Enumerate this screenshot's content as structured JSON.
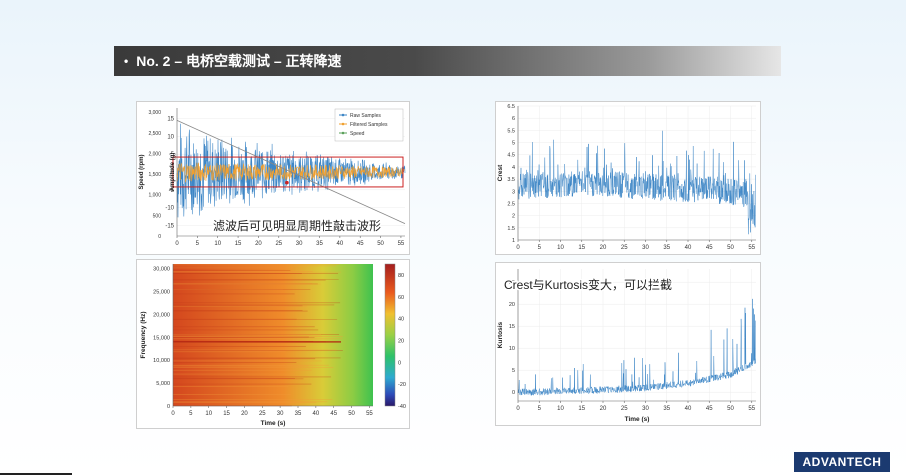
{
  "slide": {
    "bullet": "•",
    "title": "No. 2 – 电桥空载测试 – 正转降速",
    "logo": "ADVANTECH"
  },
  "colors": {
    "raw": "#3d86c6",
    "filtered": "#f0a030",
    "speed": "#5aa05a",
    "highlight": "#cc2222"
  },
  "chart_data": [
    {
      "type": "line",
      "title": "",
      "xlabel": "",
      "ylabel_left": "Speed (rpm)",
      "ylabel_right": "Amplitude (g)",
      "x_ticks": [
        "0",
        "5",
        "10",
        "15",
        "20",
        "25",
        "30",
        "35",
        "40",
        "45",
        "50",
        "55"
      ],
      "speed_ticks": [
        "3,000",
        "2,500",
        "2,000",
        "1,500",
        "1,000",
        "500",
        "0"
      ],
      "amp_ticks": [
        "15",
        "10",
        "5",
        "0",
        "-5",
        "-10",
        "-15"
      ],
      "legend": [
        "Raw Samples",
        "Filtered Samples",
        "Speed"
      ],
      "legend_position": "top-right",
      "annotation": "滤波后可见明显周期性敲击波形",
      "series": [
        {
          "name": "Raw Samples",
          "x": [
            0,
            10,
            20,
            30,
            40,
            50,
            56
          ],
          "envelope_g": [
            16,
            12,
            9,
            7,
            5,
            3,
            2
          ]
        },
        {
          "name": "Filtered Samples",
          "x": [
            0,
            10,
            20,
            30,
            40,
            50,
            56
          ],
          "envelope_g": [
            3,
            2.5,
            2.4,
            2.2,
            2,
            1.6,
            1.2
          ]
        },
        {
          "name": "Speed",
          "x": [
            0,
            56
          ],
          "values_rpm": [
            2800,
            300
          ]
        }
      ],
      "xlim": [
        0,
        56
      ],
      "ylim_amp": [
        -18,
        18
      ],
      "ylim_speed": [
        0,
        3100
      ]
    },
    {
      "type": "heatmap",
      "xlabel": "Time (s)",
      "ylabel": "Frequency (Hz)",
      "x_ticks": [
        "0",
        "5",
        "10",
        "15",
        "20",
        "25",
        "30",
        "35",
        "40",
        "45",
        "50",
        "55"
      ],
      "y_ticks": [
        "30,000",
        "25,000",
        "20,000",
        "15,000",
        "10,000",
        "5,000",
        "0"
      ],
      "colorbar_ticks": [
        "80",
        "60",
        "40",
        "20",
        "0",
        "-20",
        "-40"
      ],
      "colorbar_range": [
        -40,
        90
      ],
      "note": "Strongest band near 14,000 Hz fading after ~45 s"
    },
    {
      "type": "line",
      "ylabel": "Crest",
      "x_ticks": [
        "0",
        "5",
        "10",
        "15",
        "20",
        "25",
        "30",
        "35",
        "40",
        "45",
        "50",
        "55"
      ],
      "y_ticks": [
        "6.5",
        "6",
        "5.5",
        "5",
        "4.5",
        "4",
        "3.5",
        "3",
        "2.5",
        "2",
        "1.5",
        "1"
      ],
      "ylim": [
        1,
        6.5
      ],
      "xlim": [
        0,
        56
      ],
      "series": [
        {
          "name": "",
          "x": [
            0,
            10,
            20,
            30,
            40,
            50,
            56
          ],
          "baseline": [
            3.2,
            3.3,
            3.3,
            3.2,
            3.1,
            3.0,
            2.8
          ]
        }
      ]
    },
    {
      "type": "line",
      "xlabel": "Time (s)",
      "ylabel": "Kurtosis",
      "x_ticks": [
        "0",
        "5",
        "10",
        "15",
        "20",
        "25",
        "30",
        "35",
        "40",
        "45",
        "50",
        "55"
      ],
      "y_ticks": [
        "25",
        "20",
        "15",
        "10",
        "5",
        "0"
      ],
      "ylim": [
        -2,
        28
      ],
      "xlim": [
        0,
        56
      ],
      "annotation": "Crest与Kurtosis变大，可以拦截",
      "series": [
        {
          "name": "",
          "x": [
            0,
            10,
            20,
            30,
            40,
            50,
            56
          ],
          "baseline": [
            0,
            0.2,
            0.5,
            1,
            2,
            4,
            7
          ]
        }
      ]
    }
  ]
}
